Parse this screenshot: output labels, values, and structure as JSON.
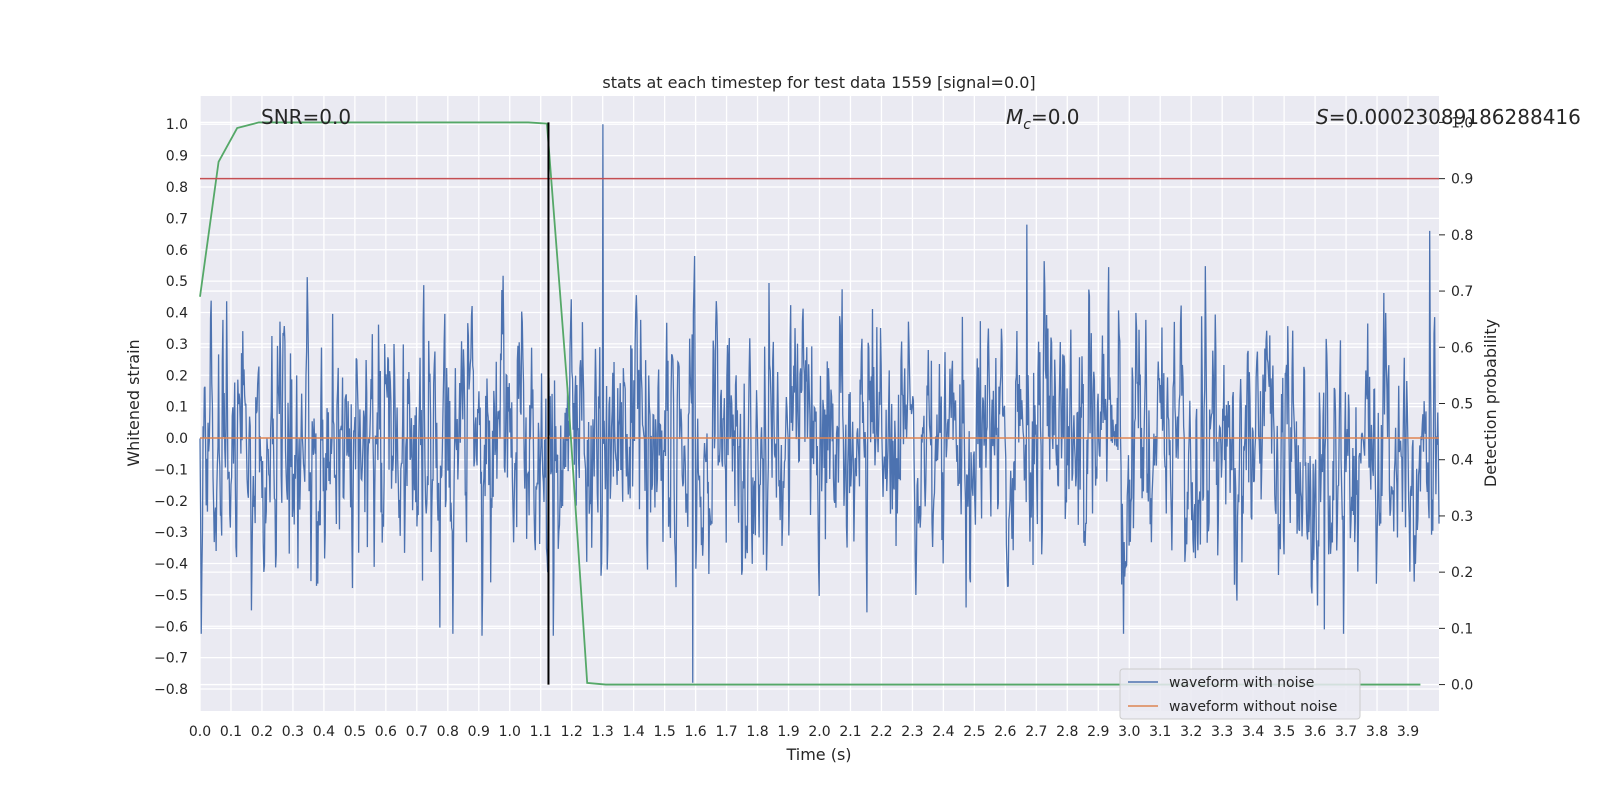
{
  "chart_data": {
    "type": "line",
    "title": "stats at each timestep for test data 1559 [signal=0.0]",
    "xlabel": "Time (s)",
    "ylabel": "Whitened strain",
    "y2label": "Detection probability",
    "xlim": [
      0.0,
      4.0
    ],
    "ylim": [
      -0.87,
      1.09
    ],
    "y2lim": [
      -0.047,
      1.047
    ],
    "x_ticks": [
      "0.0",
      "0.1",
      "0.2",
      "0.3",
      "0.4",
      "0.5",
      "0.6",
      "0.7",
      "0.8",
      "0.9",
      "1.0",
      "1.1",
      "1.2",
      "1.3",
      "1.4",
      "1.5",
      "1.6",
      "1.7",
      "1.8",
      "1.9",
      "2.0",
      "2.1",
      "2.2",
      "2.3",
      "2.4",
      "2.5",
      "2.6",
      "2.7",
      "2.8",
      "2.9",
      "3.0",
      "3.1",
      "3.2",
      "3.3",
      "3.4",
      "3.5",
      "3.6",
      "3.7",
      "3.8",
      "3.9"
    ],
    "y_ticks": [
      "1.0",
      "0.9",
      "0.8",
      "0.7",
      "0.6",
      "0.5",
      "0.4",
      "0.3",
      "0.2",
      "0.1",
      "0.0",
      "−0.1",
      "−0.2",
      "−0.3",
      "−0.4",
      "−0.5",
      "−0.6",
      "−0.7",
      "−0.8"
    ],
    "y2_ticks": [
      "1.0",
      "0.9",
      "0.8",
      "0.7",
      "0.6",
      "0.5",
      "0.4",
      "0.3",
      "0.2",
      "0.1",
      "0.0"
    ],
    "grid": true,
    "legend_position": "lower-right",
    "annotations": {
      "snr": "SNR=0.0",
      "mc_symbol": "M",
      "mc_sub": "c",
      "mc_value": "=0.0",
      "s_symbol": "S",
      "s_value": "=0.00023089186288416"
    },
    "noisy_series": {
      "name": "waveform with noise",
      "color": "#4c72b0",
      "sample_count": 2000,
      "amplitude_envelope": [
        -0.78,
        1.0
      ],
      "peaks": [
        {
          "x": 1.3,
          "y": 1.0
        },
        {
          "x": 2.67,
          "y": 0.68
        },
        {
          "x": 3.97,
          "y": 0.66
        },
        {
          "x": 1.59,
          "y": -0.78
        },
        {
          "x": 0.91,
          "y": -0.63
        },
        {
          "x": 1.14,
          "y": -0.63
        },
        {
          "x": 3.63,
          "y": -0.61
        }
      ]
    },
    "clean_series": {
      "name": "waveform without noise",
      "color": "#dd8452",
      "x": [
        0.0,
        4.0
      ],
      "y": [
        0.0,
        0.0
      ]
    },
    "probability_series": {
      "name": "detection probability",
      "color": "#55a868",
      "x": [
        0.0,
        0.06,
        0.12,
        0.19,
        0.25,
        0.5,
        0.75,
        1.0,
        1.06,
        1.12,
        1.19,
        1.25,
        1.31,
        1.5,
        2.0,
        2.5,
        3.0,
        3.5,
        3.94
      ],
      "y": [
        0.69,
        0.93,
        0.99,
        1.0,
        1.0,
        1.0,
        1.0,
        1.0,
        1.0,
        0.998,
        0.5,
        0.003,
        0.0,
        0.0,
        0.0,
        0.0,
        0.0,
        0.0,
        0.0
      ]
    },
    "threshold_line": {
      "y2": 0.9,
      "color": "#c44e52"
    },
    "marker_line": {
      "x": 1.125,
      "color": "#000000"
    }
  }
}
